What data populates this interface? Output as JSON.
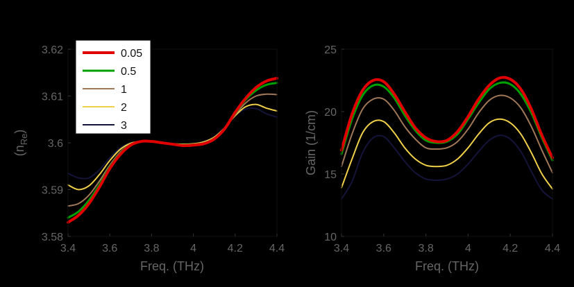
{
  "chart_data": [
    {
      "type": "line",
      "xlabel": "Freq. (THz)",
      "ylabel": "(n",
      "ylabel_sub": "Re",
      "ylabel_close": ")",
      "xlim": [
        3.4,
        4.4
      ],
      "ylim": [
        3.58,
        3.62
      ],
      "xticks": [
        "3.4",
        "3.6",
        "3.8",
        "4",
        "4.2",
        "4.4"
      ],
      "yticks": [
        "3.58",
        "3.59",
        "3.6",
        "3.61",
        "3.62"
      ],
      "grid": false,
      "legend": "top-left",
      "x": [
        3.4,
        3.45,
        3.5,
        3.55,
        3.6,
        3.65,
        3.7,
        3.75,
        3.8,
        3.85,
        3.9,
        3.95,
        4.0,
        4.05,
        4.1,
        4.15,
        4.2,
        4.25,
        4.3,
        4.35,
        4.4
      ],
      "series": [
        {
          "name": "0.05",
          "color": "#e00000",
          "values": [
            3.583,
            3.5845,
            3.587,
            3.5905,
            3.5945,
            3.5975,
            3.5995,
            3.6003,
            3.6003,
            3.6,
            3.5997,
            3.5994,
            3.5995,
            3.5998,
            3.6008,
            3.603,
            3.6065,
            3.6095,
            3.6118,
            3.6132,
            3.6138
          ]
        },
        {
          "name": "0.5",
          "color": "#00a000",
          "values": [
            3.584,
            3.5853,
            3.5877,
            3.591,
            3.5948,
            3.5977,
            3.5996,
            3.6003,
            3.6003,
            3.6,
            3.5997,
            3.5995,
            3.5996,
            3.5999,
            3.6009,
            3.603,
            3.6063,
            3.6092,
            3.6112,
            3.6124,
            3.6128
          ]
        },
        {
          "name": "1",
          "color": "#a07858",
          "values": [
            3.5865,
            3.587,
            3.5888,
            3.5918,
            3.5952,
            3.598,
            3.5997,
            3.6003,
            3.6002,
            3.6,
            3.5997,
            3.5996,
            3.5997,
            3.6,
            3.601,
            3.603,
            3.606,
            3.6085,
            3.61,
            3.6104,
            3.6103
          ]
        },
        {
          "name": "2",
          "color": "#f0d048",
          "values": [
            3.591,
            3.59,
            3.5908,
            3.5932,
            3.5962,
            3.5986,
            3.5999,
            3.6003,
            3.6002,
            3.6,
            3.5998,
            3.5997,
            3.5998,
            3.6002,
            3.6012,
            3.6032,
            3.6058,
            3.6077,
            3.6082,
            3.6074,
            3.6068
          ]
        },
        {
          "name": "3",
          "color": "#14143a",
          "values": [
            3.5935,
            3.5925,
            3.5925,
            3.5942,
            3.5968,
            3.5989,
            3.6,
            3.6003,
            3.6002,
            3.6,
            3.5998,
            3.5997,
            3.5998,
            3.6003,
            3.6013,
            3.6033,
            3.6058,
            3.6072,
            3.6073,
            3.6062,
            3.6055
          ]
        }
      ]
    },
    {
      "type": "line",
      "xlabel": "Freq. (THz)",
      "ylabel": "Gain (1/cm)",
      "xlim": [
        3.4,
        4.4
      ],
      "ylim": [
        10,
        25
      ],
      "xticks": [
        "3.4",
        "3.6",
        "3.8",
        "4",
        "4.2",
        "4.4"
      ],
      "yticks": [
        "10",
        "15",
        "20",
        "25"
      ],
      "grid": false,
      "x": [
        3.4,
        3.45,
        3.5,
        3.55,
        3.6,
        3.65,
        3.7,
        3.75,
        3.8,
        3.85,
        3.9,
        3.95,
        4.0,
        4.05,
        4.1,
        4.15,
        4.2,
        4.25,
        4.3,
        4.35,
        4.4
      ],
      "series": [
        {
          "name": "0.05",
          "color": "#e00000",
          "values": [
            16.9,
            19.8,
            21.7,
            22.5,
            22.4,
            21.4,
            20.0,
            18.7,
            17.9,
            17.6,
            17.7,
            18.4,
            19.6,
            21.0,
            22.1,
            22.7,
            22.6,
            21.8,
            20.2,
            18.1,
            16.3
          ]
        },
        {
          "name": "0.5",
          "color": "#00a000",
          "values": [
            16.6,
            19.4,
            21.3,
            22.1,
            22.0,
            21.1,
            19.7,
            18.5,
            17.7,
            17.5,
            17.6,
            18.2,
            19.4,
            20.7,
            21.8,
            22.3,
            22.2,
            21.4,
            19.9,
            17.9,
            16.1
          ]
        },
        {
          "name": "1",
          "color": "#a07858",
          "values": [
            15.6,
            18.2,
            20.2,
            21.0,
            21.0,
            20.1,
            18.8,
            17.8,
            17.1,
            17.0,
            17.1,
            17.6,
            18.6,
            19.9,
            20.9,
            21.3,
            21.1,
            20.3,
            18.8,
            16.9,
            15.1
          ]
        },
        {
          "name": "2",
          "color": "#f0d048",
          "values": [
            13.9,
            16.2,
            18.3,
            19.2,
            19.2,
            18.3,
            17.1,
            16.2,
            15.7,
            15.6,
            15.7,
            16.2,
            17.1,
            18.2,
            19.1,
            19.4,
            19.1,
            18.2,
            16.7,
            15.0,
            13.8
          ]
        },
        {
          "name": "3",
          "color": "#14143a",
          "values": [
            13.0,
            14.4,
            16.7,
            17.9,
            18.0,
            17.1,
            16.0,
            15.1,
            14.6,
            14.5,
            14.6,
            15.0,
            15.8,
            16.8,
            17.7,
            18.1,
            17.8,
            16.8,
            15.2,
            13.7,
            13.0
          ]
        }
      ]
    }
  ]
}
